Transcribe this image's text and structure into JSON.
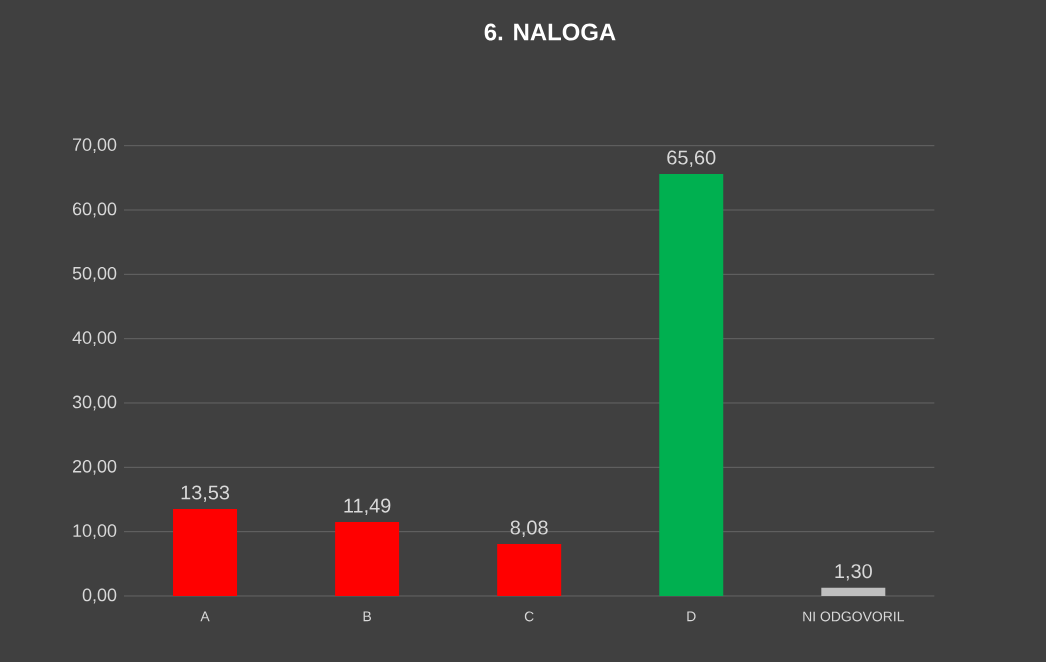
{
  "chart_data": {
    "type": "bar",
    "title": "6. NALOGA",
    "categories": [
      "A",
      "B",
      "C",
      "D",
      "NI ODGOVORIL"
    ],
    "values": [
      13.53,
      11.49,
      8.08,
      65.6,
      1.3
    ],
    "colors": [
      "#ff0000",
      "#ff0000",
      "#ff0000",
      "#00b050",
      "#bfbfbf"
    ],
    "value_labels": [
      "13,53",
      "11,49",
      "8,08",
      "65,60",
      "1,30"
    ],
    "ylim": [
      0,
      70
    ],
    "yticks": [
      {
        "value": 0,
        "label": "0,00"
      },
      {
        "value": 10,
        "label": "10,00"
      },
      {
        "value": 20,
        "label": "20,00"
      },
      {
        "value": 30,
        "label": "30,00"
      },
      {
        "value": 40,
        "label": "40,00"
      },
      {
        "value": 50,
        "label": "50,00"
      },
      {
        "value": 60,
        "label": "60,00"
      },
      {
        "value": 70,
        "label": "70,00"
      }
    ],
    "grid": "y"
  }
}
